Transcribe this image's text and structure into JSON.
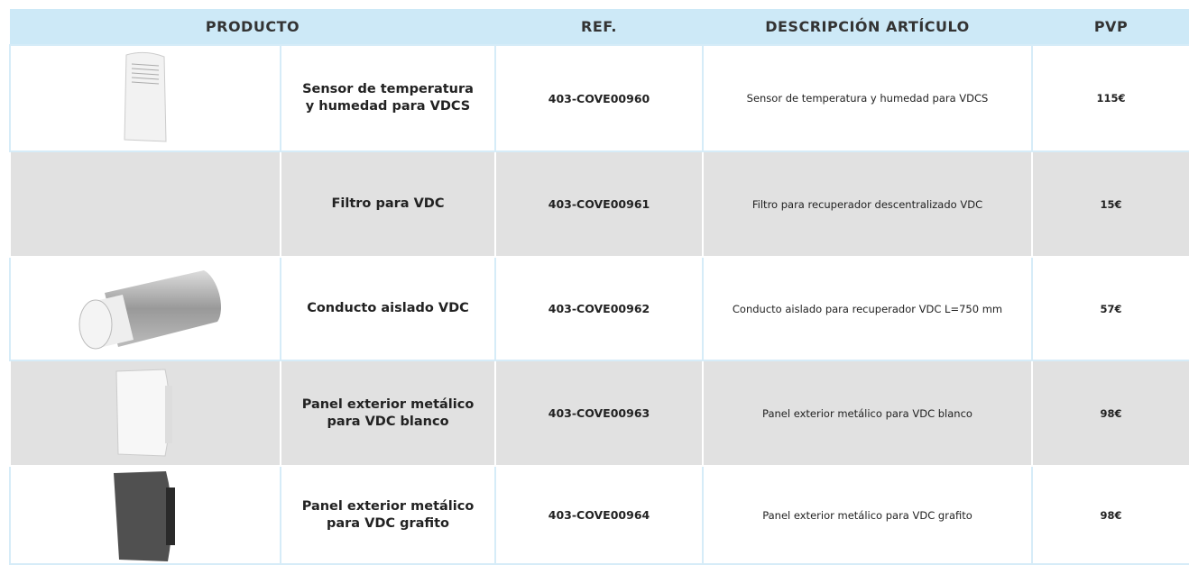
{
  "header": {
    "product": "PRODUCTO",
    "ref": "REF.",
    "description": "DESCRIPCIÓN ARTÍCULO",
    "price": "PVP"
  },
  "rows": [
    {
      "name": "Sensor de temperatura y humedad para VDCS",
      "ref": "403-COVE00960",
      "description": "Sensor de temperatura y humedad para VDCS",
      "price": "115€"
    },
    {
      "name": "Filtro para VDC",
      "ref": "403-COVE00961",
      "description": "Filtro para recuperador descentralizado VDC",
      "price": "15€"
    },
    {
      "name": "Conducto aislado VDC",
      "ref": "403-COVE00962",
      "description": "Conducto aislado para recuperador VDC L=750 mm",
      "price": "57€"
    },
    {
      "name": "Panel exterior metálico para VDC blanco",
      "ref": "403-COVE00963",
      "description": "Panel exterior metálico para VDC blanco",
      "price": "98€"
    },
    {
      "name": "Panel exterior metálico para VDC grafito",
      "ref": "403-COVE00964",
      "description": "Panel exterior metálico para VDC grafito",
      "price": "98€"
    }
  ]
}
